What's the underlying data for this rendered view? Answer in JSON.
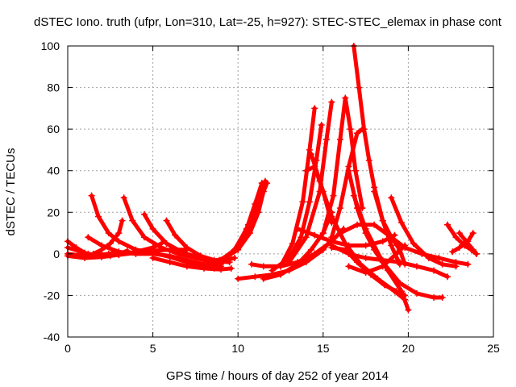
{
  "chart_data": {
    "type": "scatter",
    "title": "dSTEC Iono. truth (ufpr, Lon=310, Lat=-25, h=927): STEC-STEC_elemax in phase cont",
    "xlabel": "GPS time / hours of day 252 of year 2014",
    "ylabel": "dSTEC  / TECUs",
    "xlim": [
      0,
      25
    ],
    "ylim": [
      -40,
      100
    ],
    "xticks": [
      0,
      5,
      10,
      15,
      20,
      25
    ],
    "yticks": [
      -40,
      -20,
      0,
      20,
      40,
      60,
      80,
      100
    ],
    "grid": true,
    "marker": "+",
    "color": "#ff0000",
    "series": [
      {
        "x": [
          0.0,
          0.5,
          1.0,
          1.5,
          2.0,
          2.5,
          3.0,
          3.5
        ],
        "y": [
          6.0,
          3.0,
          0.5,
          -1.0,
          -1.5,
          -1.0,
          0.0,
          1.5
        ]
      },
      {
        "x": [
          0.0,
          0.6,
          1.2,
          1.8,
          2.4,
          3.0
        ],
        "y": [
          3.0,
          1.5,
          0.0,
          -0.5,
          0.0,
          1.0
        ]
      },
      {
        "x": [
          0.0,
          1.0,
          2.0,
          3.0,
          4.0,
          5.0,
          6.0,
          7.0
        ],
        "y": [
          0.0,
          -1.0,
          -1.0,
          -0.5,
          0.5,
          1.5,
          2.0,
          2.0
        ]
      },
      {
        "x": [
          0.0,
          1.0,
          2.0,
          3.0,
          4.0,
          5.0,
          5.5
        ],
        "y": [
          -1.0,
          -2.0,
          -1.5,
          -0.5,
          1.0,
          3.0,
          5.0
        ]
      },
      {
        "x": [
          1.2,
          2.0,
          3.0,
          4.0,
          5.0,
          6.0,
          7.0,
          8.0,
          9.0
        ],
        "y": [
          8.0,
          4.0,
          1.0,
          0.0,
          0.0,
          -1.0,
          -3.0,
          -5.0,
          -6.0
        ]
      },
      {
        "x": [
          1.4,
          1.8,
          2.4,
          3.0,
          4.0,
          5.0,
          6.0,
          7.0,
          8.0,
          8.6
        ],
        "y": [
          28.0,
          18.0,
          10.0,
          6.0,
          2.0,
          0.5,
          -1.5,
          -4.0,
          -6.0,
          -7.0
        ]
      },
      {
        "x": [
          1.5,
          2.0,
          2.5,
          3.0,
          3.2
        ],
        "y": [
          0.0,
          2.0,
          5.0,
          10.0,
          16.0
        ]
      },
      {
        "x": [
          3.3,
          3.8,
          4.5,
          5.5,
          6.5,
          7.5,
          8.5,
          9.0
        ],
        "y": [
          27.0,
          16.0,
          8.0,
          3.0,
          0.0,
          -2.0,
          -4.0,
          -5.0
        ]
      },
      {
        "x": [
          4.5,
          5.0,
          5.8,
          6.8,
          7.8,
          8.8,
          9.5
        ],
        "y": [
          19.0,
          12.0,
          5.0,
          0.5,
          -2.0,
          -3.5,
          -4.0
        ]
      },
      {
        "x": [
          5.8,
          6.3,
          7.0,
          7.8,
          8.6,
          9.3,
          9.8
        ],
        "y": [
          16.0,
          9.0,
          3.0,
          -1.0,
          -3.0,
          -3.0,
          -2.0
        ]
      },
      {
        "x": [
          5.0,
          6.0,
          7.0,
          8.0,
          9.0,
          9.6
        ],
        "y": [
          -2.0,
          -4.0,
          -6.0,
          -7.0,
          -7.5,
          -7.0
        ]
      },
      {
        "x": [
          8.3,
          9.0,
          9.8,
          10.5,
          11.0,
          11.4
        ],
        "y": [
          -5.0,
          -3.0,
          2.0,
          12.0,
          24.0,
          34.0
        ]
      },
      {
        "x": [
          8.6,
          9.3,
          10.0,
          10.6,
          11.1,
          11.6
        ],
        "y": [
          -4.0,
          -2.0,
          4.0,
          14.0,
          25.0,
          35.0
        ]
      },
      {
        "x": [
          8.9,
          9.6,
          10.3,
          10.9,
          11.3,
          11.7
        ],
        "y": [
          -3.0,
          0.0,
          6.0,
          16.0,
          26.0,
          34.0
        ]
      },
      {
        "x": [
          9.2,
          10.0,
          10.7,
          11.2,
          11.5
        ],
        "y": [
          -2.0,
          2.0,
          10.0,
          20.0,
          30.0
        ]
      },
      {
        "x": [
          10.0,
          11.0,
          12.0,
          13.0,
          14.0,
          15.0,
          15.6
        ],
        "y": [
          -12.0,
          -11.0,
          -10.0,
          -8.0,
          -4.0,
          2.0,
          8.0
        ]
      },
      {
        "x": [
          10.8,
          11.5,
          12.5,
          13.5,
          14.5,
          15.5,
          16.2
        ],
        "y": [
          -5.0,
          -6.0,
          -6.0,
          -4.0,
          0.0,
          6.0,
          12.0
        ]
      },
      {
        "x": [
          11.5,
          12.5,
          13.5,
          14.3,
          15.0,
          15.5
        ],
        "y": [
          -12.0,
          -10.0,
          -5.0,
          2.0,
          10.0,
          20.0
        ]
      },
      {
        "x": [
          12.0,
          13.0,
          13.7,
          14.2,
          14.6,
          14.9
        ],
        "y": [
          -8.0,
          -2.0,
          8.0,
          25.0,
          45.0,
          62.0
        ]
      },
      {
        "x": [
          12.5,
          13.2,
          13.8,
          14.2,
          14.5
        ],
        "y": [
          -6.0,
          5.0,
          25.0,
          50.0,
          70.0
        ]
      },
      {
        "x": [
          13.0,
          14.0,
          14.8,
          15.2,
          15.5
        ],
        "y": [
          -4.0,
          8.0,
          30.0,
          55.0,
          73.0
        ]
      },
      {
        "x": [
          14.3,
          14.8,
          15.5,
          16.3,
          17.2,
          18.2,
          19.2,
          19.8
        ],
        "y": [
          48.0,
          35.0,
          18.0,
          5.0,
          -5.0,
          -12.0,
          -18.0,
          -22.0
        ]
      },
      {
        "x": [
          14.0,
          14.5,
          15.0,
          15.5
        ],
        "y": [
          40.0,
          42.0,
          30.0,
          15.0
        ]
      },
      {
        "x": [
          15.0,
          15.6,
          16.0,
          16.3,
          16.6,
          16.9,
          17.3
        ],
        "y": [
          10.0,
          28.0,
          55.0,
          75.0,
          60.0,
          40.0,
          22.0
        ]
      },
      {
        "x": [
          15.5,
          16.0,
          16.5,
          17.0,
          17.3
        ],
        "y": [
          8.0,
          22.0,
          42.0,
          58.0,
          60.0
        ]
      },
      {
        "x": [
          16.5,
          17.0,
          17.5,
          18.0,
          18.8,
          19.6,
          20.0
        ],
        "y": [
          40.0,
          22.0,
          10.0,
          2.0,
          -8.0,
          -18.0,
          -27.0
        ]
      },
      {
        "x": [
          16.8,
          17.5,
          18.5,
          19.5,
          20.5,
          21.5,
          22.0
        ],
        "y": [
          28.0,
          12.0,
          -4.0,
          -14.0,
          -19.0,
          -21.0,
          -21.0
        ]
      },
      {
        "x": [
          16.8,
          17.1,
          17.4,
          17.7,
          18.0,
          18.5,
          19.0,
          19.5
        ],
        "y": [
          100.0,
          80.0,
          60.0,
          45.0,
          32.0,
          16.0,
          4.0,
          -5.0
        ]
      },
      {
        "x": [
          15.5,
          16.5,
          17.5,
          18.5,
          19.5,
          20.5,
          21.5,
          22.3
        ],
        "y": [
          4.0,
          0.0,
          -2.0,
          -3.0,
          -4.0,
          -6.0,
          -8.0,
          -11.0
        ]
      },
      {
        "x": [
          13.5,
          14.5,
          15.5,
          16.5,
          17.5,
          18.5,
          19.2
        ],
        "y": [
          12.0,
          9.0,
          6.0,
          4.0,
          4.0,
          6.0,
          9.0
        ]
      },
      {
        "x": [
          16.0,
          17.0,
          18.0,
          19.0,
          19.5,
          19.8
        ],
        "y": [
          10.0,
          14.0,
          14.0,
          8.0,
          2.0,
          -5.0
        ]
      },
      {
        "x": [
          15.5,
          16.3,
          17.0,
          17.8,
          18.6,
          19.3,
          19.8
        ],
        "y": [
          3.0,
          2.0,
          -4.0,
          -10.0,
          -15.0,
          -18.0,
          -20.0
        ]
      },
      {
        "x": [
          18.0,
          18.5,
          19.0,
          19.8,
          20.8,
          21.8,
          22.8,
          23.5
        ],
        "y": [
          30.0,
          16.0,
          8.0,
          3.0,
          0.0,
          -2.0,
          -4.0,
          -5.0
        ]
      },
      {
        "x": [
          19.0,
          19.6,
          20.3,
          21.2,
          22.0,
          22.8
        ],
        "y": [
          27.0,
          15.0,
          5.0,
          -2.0,
          -5.0,
          -6.0
        ]
      },
      {
        "x": [
          16.5,
          17.5,
          18.5,
          19.3,
          19.8
        ],
        "y": [
          -6.0,
          -9.0,
          -6.0,
          0.0,
          4.0
        ]
      },
      {
        "x": [
          22.3,
          22.8,
          23.3,
          23.7,
          24.0
        ],
        "y": [
          14.0,
          8.0,
          4.0,
          2.0,
          0.0
        ]
      },
      {
        "x": [
          22.6,
          23.0,
          23.5,
          23.8
        ],
        "y": [
          1.0,
          3.0,
          6.0,
          10.0
        ]
      },
      {
        "x": [
          23.0,
          23.4,
          23.8,
          24.0
        ],
        "y": [
          10.0,
          6.0,
          2.0,
          0.0
        ]
      }
    ]
  }
}
